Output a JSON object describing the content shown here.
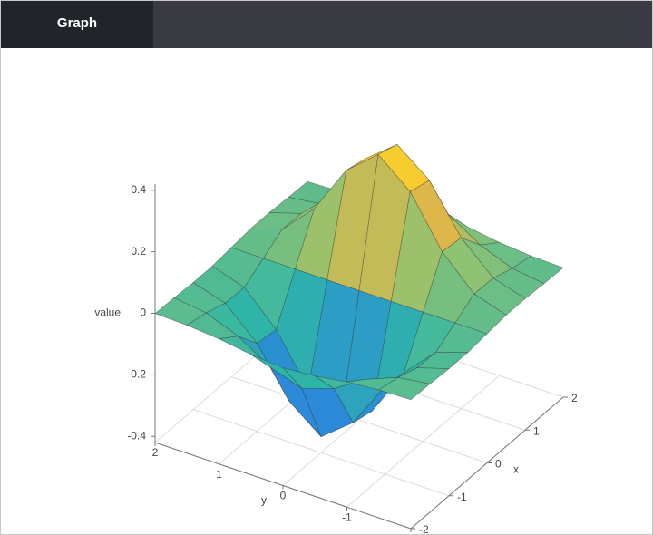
{
  "tab": "Graph",
  "chart_data": {
    "type": "surface",
    "x": [
      -2,
      -1.5,
      -1,
      -0.5,
      0,
      0.5,
      1,
      1.5,
      2
    ],
    "y": [
      -2,
      -1.5,
      -1,
      -0.5,
      0,
      0.5,
      1,
      1.5,
      2
    ],
    "z": [
      [
        -0.001,
        -0.003,
        -0.007,
        -0.007,
        0,
        0.007,
        0.007,
        0.003,
        0.001
      ],
      [
        -0.004,
        -0.017,
        -0.039,
        -0.041,
        0,
        0.041,
        0.039,
        0.017,
        0.004
      ],
      [
        -0.013,
        -0.058,
        -0.135,
        -0.143,
        0,
        0.143,
        0.135,
        0.058,
        0.013
      ],
      [
        -0.029,
        -0.123,
        -0.287,
        -0.303,
        0,
        0.303,
        0.287,
        0.123,
        0.029
      ],
      [
        -0.037,
        -0.158,
        -0.368,
        -0.389,
        0,
        0.389,
        0.368,
        0.158,
        0.037
      ],
      [
        -0.029,
        -0.123,
        -0.287,
        -0.303,
        0,
        0.303,
        0.287,
        0.123,
        0.029
      ],
      [
        -0.013,
        -0.058,
        -0.135,
        -0.143,
        0,
        0.143,
        0.135,
        0.058,
        0.013
      ],
      [
        -0.004,
        -0.017,
        -0.039,
        -0.041,
        0,
        0.041,
        0.039,
        0.017,
        0.004
      ],
      [
        -0.001,
        -0.003,
        -0.007,
        -0.007,
        0,
        0.007,
        0.007,
        0.003,
        0.001
      ]
    ],
    "xlim": [
      -2,
      2
    ],
    "ylim": [
      -2,
      2
    ],
    "zlim": [
      -0.42,
      0.42
    ],
    "xticks": [
      -2,
      -1,
      0,
      1,
      2
    ],
    "yticks": [
      -2,
      -1,
      0,
      1,
      2
    ],
    "zticks": [
      -0.4,
      -0.2,
      0,
      0.2,
      0.4
    ],
    "xlabel": "x",
    "ylabel": "y",
    "zlabel": "value",
    "colorscale": [
      "#2437c4",
      "#2a86de",
      "#2fb6a6",
      "#8cc274",
      "#f4b440",
      "#f7e41c"
    ],
    "grid": true
  }
}
